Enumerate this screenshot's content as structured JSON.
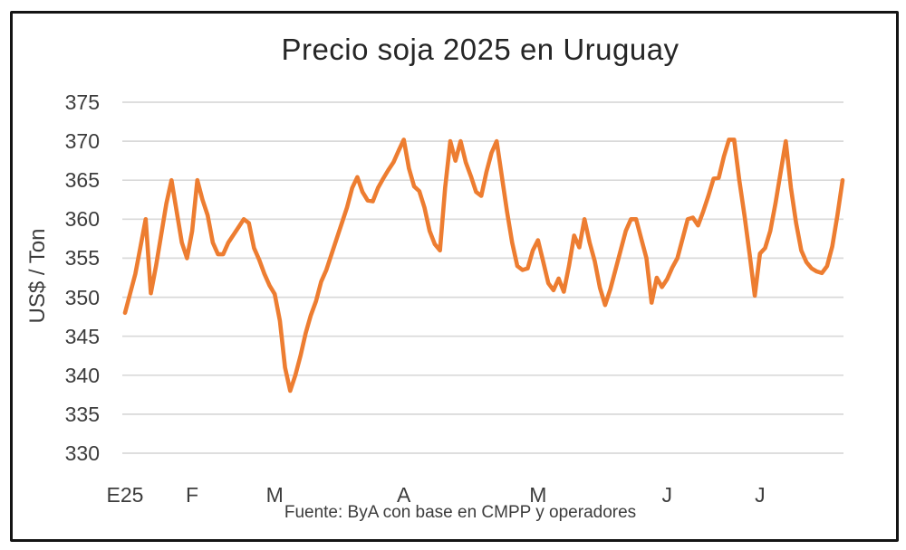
{
  "chart_data": {
    "type": "line",
    "title": "Precio soja 2025 en Uruguay",
    "ylabel": "US$ / Ton",
    "xlabel": "",
    "source_note": "Fuente: ByA con base en CMPP y operadores",
    "series_name": "Precio soja Uruguay 2025",
    "unit": "US$ / Ton",
    "ylim": [
      330,
      375
    ],
    "y_ticks": [
      330,
      335,
      340,
      345,
      350,
      355,
      360,
      365,
      370,
      375
    ],
    "x_ticks": [
      {
        "label": "E25",
        "index": 0
      },
      {
        "label": "F",
        "index": 13
      },
      {
        "label": "M",
        "index": 29
      },
      {
        "label": "A",
        "index": 54
      },
      {
        "label": "M",
        "index": 80
      },
      {
        "label": "J",
        "index": 105
      },
      {
        "label": "J",
        "index": 123
      }
    ],
    "legend": "none",
    "grid": "horizontal",
    "line_color": "#ED7D31",
    "grid_color": "#D9D9D9",
    "text_color": "#3C3C3C",
    "title_color": "#262626",
    "border_color": "#141414",
    "background": "#FFFFFF",
    "values": [
      348,
      350.5,
      353,
      356.5,
      360,
      350.5,
      354,
      358,
      362,
      365,
      361,
      357,
      355,
      358.5,
      365,
      362.5,
      360.5,
      357,
      355.5,
      355.5,
      357,
      358,
      359,
      360,
      359.5,
      356.3,
      354.8,
      353,
      351.5,
      350.4,
      347,
      341,
      338,
      340,
      342.5,
      345.4,
      347.7,
      349.5,
      352,
      353.5,
      355.5,
      357.5,
      359.5,
      361.5,
      364,
      365.4,
      363.5,
      362.4,
      362.3,
      364,
      365.2,
      366.3,
      367.3,
      368.8,
      370.2,
      366.5,
      364.2,
      363.6,
      361.5,
      358.5,
      356.8,
      356,
      364,
      370,
      367.5,
      370,
      367.3,
      365.5,
      363.5,
      363,
      366,
      368.5,
      370,
      365.5,
      361,
      357,
      354,
      353.5,
      353.7,
      356,
      357.3,
      354.6,
      351.8,
      350.9,
      352.4,
      350.7,
      354,
      357.9,
      356.4,
      360,
      357,
      354.6,
      351.2,
      349,
      351,
      353.5,
      356,
      358.5,
      360,
      360,
      357.5,
      355,
      349.3,
      352.5,
      351.3,
      352.3,
      353.8,
      355,
      357.5,
      360,
      360.2,
      359.2,
      361,
      363,
      365.2,
      365.3,
      368,
      370.2,
      370.2,
      365,
      360.5,
      355.5,
      350.2,
      355.6,
      356.3,
      358.5,
      362,
      366,
      370,
      364,
      359.5,
      356,
      354.5,
      353.7,
      353.3,
      353.1,
      354,
      356.5,
      360.5,
      365
    ]
  }
}
